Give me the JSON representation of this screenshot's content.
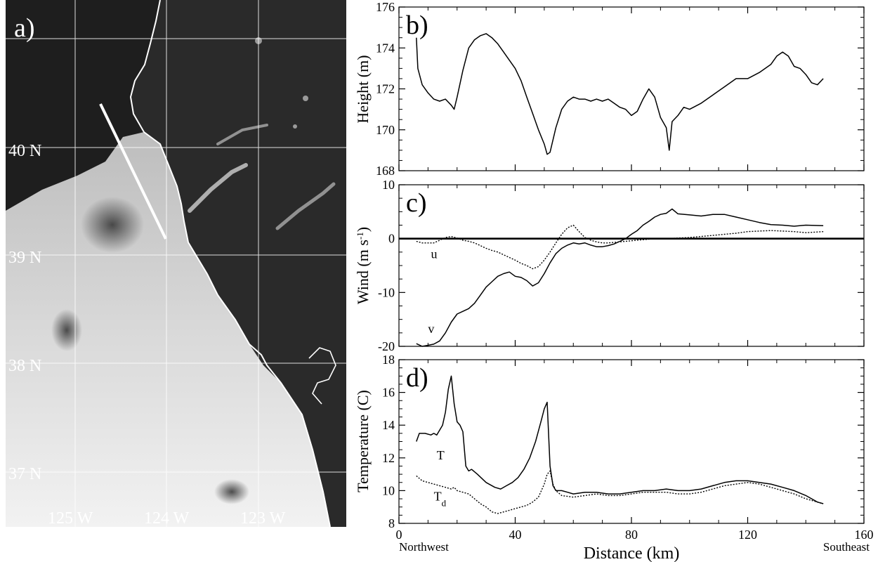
{
  "panels": {
    "a": "a)",
    "b": "b)",
    "c": "c)",
    "d": "d)"
  },
  "map": {
    "lat_labels": [
      "40 N",
      "39 N",
      "38 N",
      "37 N"
    ],
    "lon_labels": [
      "125 W",
      "124 W",
      "123 W"
    ],
    "line_color": "#ffffff",
    "sea_color": "#1e1e1e",
    "cloud_color": "#e6e6e6"
  },
  "x_axis": {
    "label": "Distance (km)",
    "left_label": "Northwest",
    "right_label": "Southeast",
    "range": [
      0,
      160
    ],
    "ticks": [
      0,
      40,
      80,
      120,
      160
    ]
  },
  "chart_data": [
    {
      "type": "line",
      "panel": "b)",
      "ylabel": "Height (m)",
      "ylim": [
        168,
        176
      ],
      "yticks": [
        168,
        170,
        172,
        174,
        176
      ],
      "xlim": [
        0,
        160
      ],
      "series": [
        {
          "style": "solid",
          "x": [
            6,
            6.5,
            8,
            10,
            12,
            14,
            16,
            18,
            19,
            20,
            22,
            24,
            26,
            28,
            30,
            32,
            34,
            36,
            38,
            40,
            42,
            44,
            46,
            48,
            50,
            51,
            52,
            54,
            56,
            58,
            60,
            62,
            64,
            66,
            68,
            70,
            72,
            74,
            76,
            78,
            80,
            82,
            84,
            86,
            88,
            90,
            92,
            93,
            94,
            96,
            98,
            100,
            104,
            108,
            112,
            116,
            120,
            124,
            128,
            130,
            132,
            134,
            136,
            138,
            140,
            142,
            144,
            146
          ],
          "values": [
            174.5,
            173.0,
            172.2,
            171.8,
            171.5,
            171.4,
            171.5,
            171.2,
            171.0,
            171.6,
            172.9,
            174.0,
            174.4,
            174.6,
            174.7,
            174.5,
            174.2,
            173.8,
            173.4,
            173.0,
            172.4,
            171.6,
            170.8,
            170.0,
            169.3,
            168.8,
            168.9,
            170.1,
            171.0,
            171.4,
            171.6,
            171.5,
            171.5,
            171.4,
            171.5,
            171.4,
            171.5,
            171.3,
            171.1,
            171.0,
            170.7,
            170.9,
            171.5,
            172.0,
            171.6,
            170.6,
            170.1,
            169.0,
            170.4,
            170.7,
            171.1,
            171.0,
            171.3,
            171.7,
            172.1,
            172.5,
            172.5,
            172.8,
            173.2,
            173.6,
            173.8,
            173.6,
            173.1,
            173.0,
            172.7,
            172.3,
            172.2,
            172.5
          ]
        }
      ]
    },
    {
      "type": "line",
      "panel": "c)",
      "ylabel": "Wind (m s",
      "ylabel_sup": "-1",
      "ylabel_end": ")",
      "ylim": [
        -20,
        10
      ],
      "yticks": [
        -20,
        -10,
        0,
        10
      ],
      "xlim": [
        0,
        160
      ],
      "zero_line": true,
      "series": [
        {
          "name": "v",
          "style": "solid",
          "x": [
            6,
            8,
            10,
            12,
            14,
            16,
            18,
            20,
            22,
            24,
            26,
            28,
            30,
            32,
            34,
            36,
            38,
            40,
            42,
            44,
            46,
            48,
            50,
            52,
            54,
            56,
            58,
            60,
            62,
            64,
            66,
            68,
            70,
            72,
            74,
            76,
            78,
            80,
            82,
            84,
            86,
            88,
            90,
            92,
            94,
            96,
            100,
            104,
            108,
            112,
            116,
            120,
            124,
            128,
            132,
            136,
            140,
            146
          ],
          "values": [
            -19.5,
            -20.0,
            -19.8,
            -19.6,
            -19.0,
            -17.5,
            -15.5,
            -14.0,
            -13.5,
            -13.0,
            -12.0,
            -10.5,
            -9.0,
            -8.0,
            -7.0,
            -6.5,
            -6.2,
            -7.0,
            -7.2,
            -7.8,
            -8.8,
            -8.2,
            -6.5,
            -4.5,
            -2.8,
            -1.8,
            -1.2,
            -0.8,
            -1.0,
            -0.8,
            -1.2,
            -1.5,
            -1.5,
            -1.3,
            -1.0,
            -0.5,
            0.0,
            0.8,
            1.5,
            2.5,
            3.2,
            4.0,
            4.5,
            4.7,
            5.5,
            4.6,
            4.4,
            4.2,
            4.5,
            4.5,
            4.0,
            3.5,
            3.0,
            2.6,
            2.5,
            2.3,
            2.5,
            2.4
          ]
        },
        {
          "name": "u",
          "style": "dotted",
          "x": [
            6,
            8,
            10,
            12,
            14,
            16,
            18,
            20,
            22,
            24,
            26,
            28,
            30,
            32,
            34,
            36,
            38,
            40,
            42,
            44,
            46,
            48,
            50,
            52,
            54,
            56,
            58,
            60,
            62,
            64,
            66,
            68,
            70,
            72,
            76,
            80,
            84,
            88,
            92,
            96,
            100,
            104,
            108,
            112,
            116,
            120,
            124,
            128,
            132,
            136,
            140,
            146
          ],
          "values": [
            -0.5,
            -0.8,
            -0.8,
            -0.8,
            -0.3,
            0.2,
            0.4,
            0.1,
            -0.3,
            -0.5,
            -0.8,
            -1.3,
            -1.8,
            -2.2,
            -2.5,
            -3.0,
            -3.5,
            -4.0,
            -4.6,
            -5.0,
            -5.6,
            -5.2,
            -4.0,
            -2.5,
            -0.8,
            0.8,
            2.0,
            2.5,
            1.3,
            0.2,
            -0.3,
            -0.6,
            -0.8,
            -0.8,
            -0.6,
            -0.4,
            -0.2,
            0.0,
            0.0,
            0.1,
            0.2,
            0.4,
            0.6,
            0.8,
            1.0,
            1.3,
            1.4,
            1.5,
            1.4,
            1.3,
            1.1,
            1.3
          ]
        }
      ]
    },
    {
      "type": "line",
      "panel": "d)",
      "ylabel": "Temperature (C)",
      "ylim": [
        8,
        18
      ],
      "yticks": [
        8,
        10,
        12,
        14,
        16,
        18
      ],
      "xlim": [
        0,
        160
      ],
      "series": [
        {
          "name": "T",
          "style": "solid",
          "x": [
            6,
            7,
            9,
            11,
            12,
            13,
            15,
            16,
            17,
            18,
            19,
            20,
            21,
            22,
            23,
            24,
            25,
            27,
            30,
            33,
            35,
            37,
            39,
            41,
            43,
            45,
            47,
            49,
            50,
            51,
            52,
            53,
            54,
            56,
            58,
            60,
            64,
            68,
            72,
            76,
            80,
            84,
            88,
            92,
            96,
            100,
            104,
            108,
            112,
            116,
            120,
            124,
            128,
            132,
            136,
            140,
            144,
            146
          ],
          "values": [
            13.0,
            13.5,
            13.5,
            13.4,
            13.5,
            13.4,
            14.0,
            14.8,
            16.2,
            17.0,
            15.3,
            14.2,
            14.0,
            13.6,
            11.5,
            11.2,
            11.3,
            11.0,
            10.5,
            10.2,
            10.1,
            10.3,
            10.5,
            10.8,
            11.3,
            12.0,
            13.0,
            14.3,
            15.0,
            15.4,
            11.5,
            10.3,
            10.0,
            10.0,
            9.9,
            9.8,
            9.9,
            9.9,
            9.8,
            9.8,
            9.9,
            10.0,
            10.0,
            10.1,
            10.0,
            10.0,
            10.1,
            10.3,
            10.5,
            10.6,
            10.6,
            10.5,
            10.4,
            10.2,
            10.0,
            9.7,
            9.3,
            9.2
          ]
        },
        {
          "name": "T",
          "name_sub": "d",
          "style": "dotted",
          "x": [
            6,
            8,
            10,
            12,
            14,
            16,
            18,
            19,
            20,
            22,
            24,
            26,
            28,
            30,
            32,
            34,
            36,
            38,
            40,
            42,
            44,
            46,
            48,
            50,
            51,
            52,
            53,
            54,
            56,
            60,
            64,
            68,
            72,
            76,
            80,
            84,
            88,
            92,
            96,
            100,
            104,
            108,
            112,
            116,
            120,
            124,
            128,
            132,
            136,
            140,
            144,
            146
          ],
          "values": [
            10.9,
            10.6,
            10.5,
            10.4,
            10.3,
            10.2,
            10.1,
            10.2,
            10.0,
            9.9,
            9.8,
            9.5,
            9.2,
            9.0,
            8.7,
            8.6,
            8.7,
            8.8,
            8.9,
            9.0,
            9.1,
            9.3,
            9.6,
            10.4,
            11.0,
            11.2,
            10.4,
            10.0,
            9.7,
            9.6,
            9.7,
            9.8,
            9.7,
            9.7,
            9.8,
            9.9,
            9.9,
            9.9,
            9.8,
            9.8,
            9.9,
            10.1,
            10.3,
            10.4,
            10.5,
            10.4,
            10.2,
            10.0,
            9.8,
            9.5,
            9.3,
            9.2
          ]
        }
      ]
    }
  ]
}
